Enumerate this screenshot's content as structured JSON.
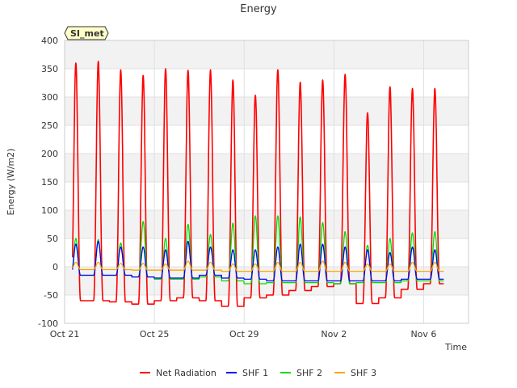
{
  "chart_data": {
    "type": "line",
    "title": "Energy",
    "xlabel": "Time",
    "ylabel": "Energy (W/m2)",
    "site_badge": "SI_met",
    "x_unit": "days since Oct 21 00:00",
    "xlim": [
      0,
      18
    ],
    "ylim": [
      -100,
      400
    ],
    "grid": true,
    "banded_background": true,
    "legend_position": "bottom-center",
    "x_ticks": [
      {
        "value": 0,
        "label": "Oct 21"
      },
      {
        "value": 4,
        "label": "Oct 25"
      },
      {
        "value": 8,
        "label": "Oct 29"
      },
      {
        "value": 12,
        "label": "Nov 2"
      },
      {
        "value": 16,
        "label": "Nov 6"
      }
    ],
    "y_ticks": [
      -100,
      -50,
      0,
      50,
      100,
      150,
      200,
      250,
      300,
      350,
      400
    ],
    "days": [
      0,
      1,
      2,
      3,
      4,
      5,
      6,
      7,
      8,
      9,
      10,
      11,
      12,
      13,
      14,
      15,
      16
    ],
    "series": [
      {
        "name": "Net Radiation",
        "color": "#ff0000",
        "daily_peak": [
          360,
          363,
          348,
          338,
          350,
          347,
          348,
          330,
          303,
          348,
          326,
          330,
          340,
          272,
          318,
          315,
          315
        ],
        "night_value": [
          -60,
          -60,
          -62,
          -66,
          -60,
          -55,
          -60,
          -70,
          -55,
          -50,
          -42,
          -35,
          -30,
          -65,
          -55,
          -40,
          -30
        ]
      },
      {
        "name": "SHF 1",
        "color": "#0000ff",
        "daily_peak": [
          40,
          45,
          35,
          35,
          30,
          45,
          35,
          30,
          30,
          35,
          40,
          40,
          35,
          30,
          25,
          35,
          30
        ],
        "night_value": [
          -15,
          -15,
          -15,
          -18,
          -20,
          -20,
          -15,
          -20,
          -22,
          -25,
          -25,
          -25,
          -25,
          -25,
          -25,
          -22,
          -22
        ]
      },
      {
        "name": "SHF 2",
        "color": "#00dd00",
        "daily_peak": [
          50,
          48,
          42,
          80,
          50,
          75,
          57,
          77,
          90,
          90,
          88,
          78,
          62,
          38,
          50,
          60,
          62
        ],
        "night_value": [
          -15,
          -15,
          -15,
          -18,
          -22,
          -22,
          -18,
          -25,
          -30,
          -28,
          -28,
          -28,
          -30,
          -28,
          -28,
          -25,
          -25
        ]
      },
      {
        "name": "SHF 3",
        "color": "#ffa500",
        "daily_peak": [
          8,
          8,
          6,
          6,
          5,
          10,
          8,
          5,
          5,
          8,
          8,
          10,
          8,
          5,
          5,
          8,
          8
        ],
        "night_value": [
          -5,
          -5,
          -5,
          -6,
          -6,
          -6,
          -6,
          -8,
          -8,
          -8,
          -8,
          -8,
          -8,
          -8,
          -8,
          -8,
          -8
        ]
      }
    ]
  }
}
